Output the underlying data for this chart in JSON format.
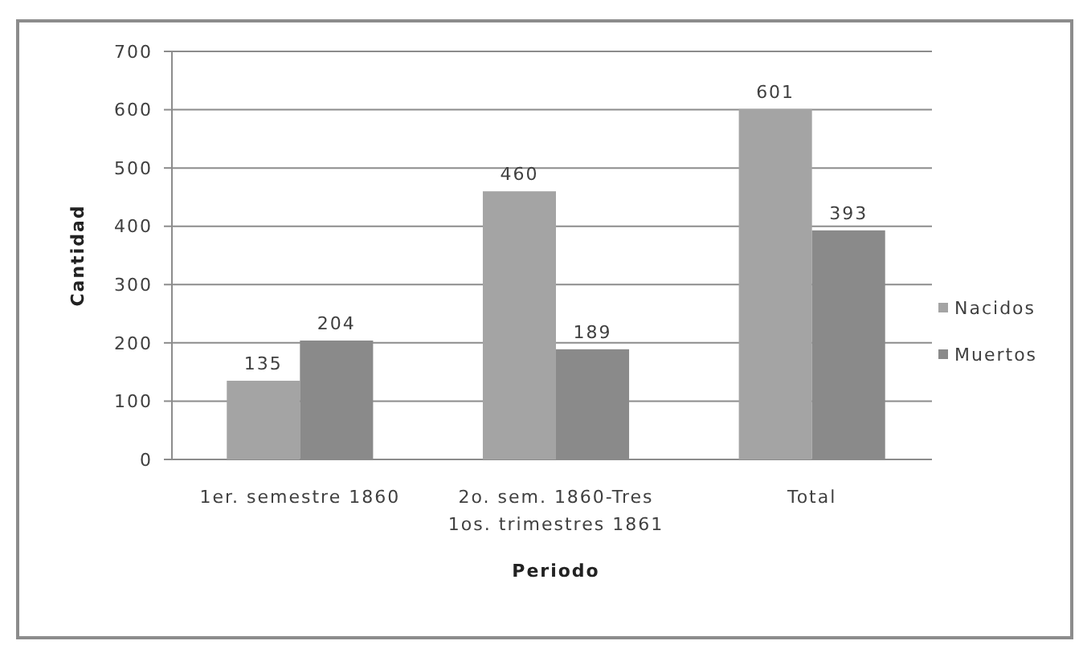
{
  "chart_data": {
    "type": "bar",
    "xlabel": "Periodo",
    "ylabel": "Cantidad",
    "categories": [
      "1er. semestre 1860",
      "2o. sem. 1860-Tres 1os. trimestres 1861",
      "Total"
    ],
    "series": [
      {
        "name": "Nacidos",
        "color": "#a4a4a4",
        "values": [
          135,
          460,
          601
        ]
      },
      {
        "name": "Muertos",
        "color": "#8a8a8a",
        "values": [
          204,
          189,
          393
        ]
      }
    ],
    "ylim": [
      0,
      700
    ],
    "yticks": [
      0,
      100,
      200,
      300,
      400,
      500,
      600,
      700
    ],
    "grid": "y",
    "legend": "right",
    "data_labels": true
  }
}
